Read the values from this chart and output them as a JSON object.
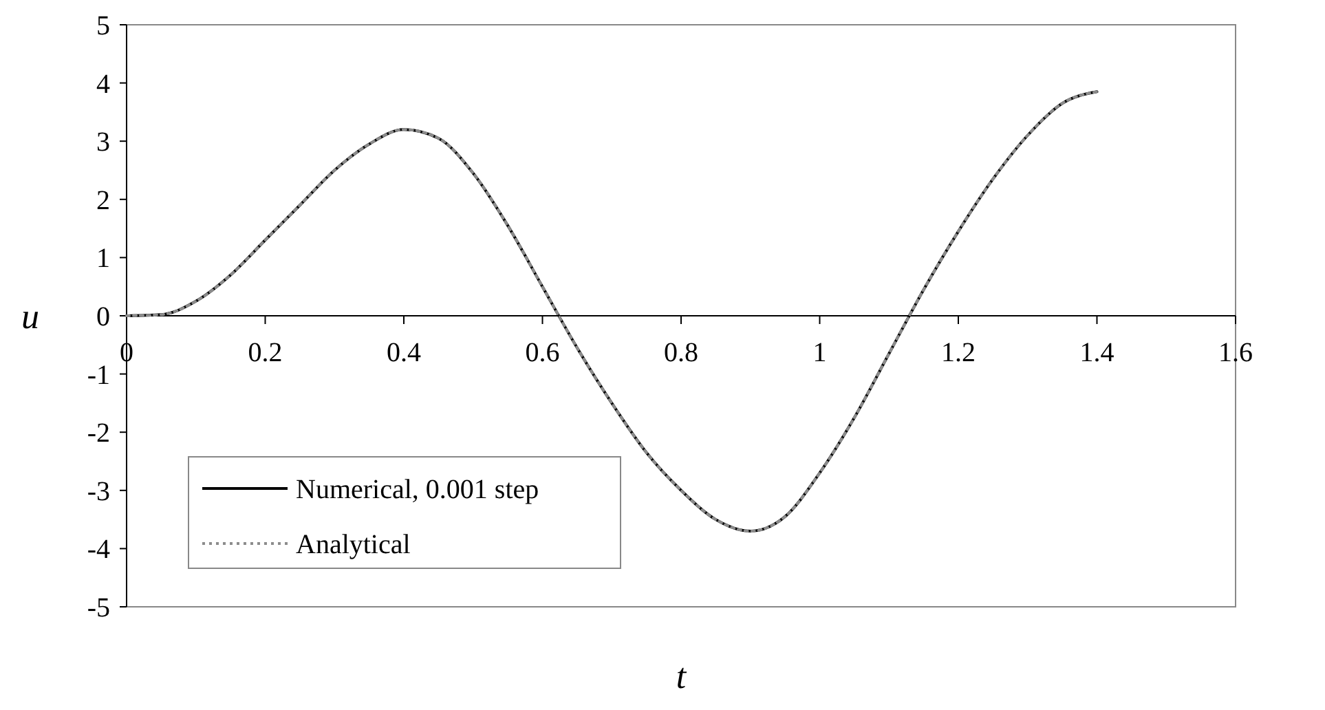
{
  "chart_data": {
    "type": "line",
    "xlabel": "t",
    "ylabel": "u",
    "x": [
      0,
      0.05,
      0.1,
      0.15,
      0.2,
      0.25,
      0.3,
      0.35,
      0.4,
      0.45,
      0.5,
      0.55,
      0.6,
      0.65,
      0.7,
      0.75,
      0.8,
      0.85,
      0.9,
      0.95,
      1.0,
      1.05,
      1.1,
      1.15,
      1.2,
      1.25,
      1.3,
      1.35,
      1.4
    ],
    "series": [
      {
        "name": "Numerical, 0.001 step",
        "color": "#000000",
        "line_style": "solid",
        "values": [
          0,
          0.02,
          0.25,
          0.7,
          1.3,
          1.9,
          2.5,
          2.95,
          3.2,
          3.05,
          2.45,
          1.55,
          0.5,
          -0.55,
          -1.5,
          -2.35,
          -3.0,
          -3.5,
          -3.7,
          -3.45,
          -2.7,
          -1.75,
          -0.65,
          0.45,
          1.45,
          2.35,
          3.1,
          3.65,
          3.85
        ]
      },
      {
        "name": "Analytical",
        "color": "#8c8c8c",
        "line_style": "dotted",
        "values": [
          0,
          0.02,
          0.25,
          0.7,
          1.3,
          1.9,
          2.5,
          2.95,
          3.2,
          3.05,
          2.45,
          1.55,
          0.5,
          -0.55,
          -1.5,
          -2.35,
          -3.0,
          -3.5,
          -3.7,
          -3.45,
          -2.7,
          -1.75,
          -0.65,
          0.45,
          1.45,
          2.35,
          3.1,
          3.65,
          3.85
        ]
      }
    ],
    "xlim": [
      0,
      1.6
    ],
    "xticks": [
      0,
      0.2,
      0.4,
      0.6,
      0.8,
      1,
      1.2,
      1.4,
      1.6
    ],
    "ylim": [
      -5,
      5
    ],
    "yticks": [
      -5,
      -4,
      -3,
      -2,
      -1,
      0,
      1,
      2,
      3,
      4,
      5
    ],
    "grid": false,
    "legend": "bottom left",
    "marker": "none"
  }
}
